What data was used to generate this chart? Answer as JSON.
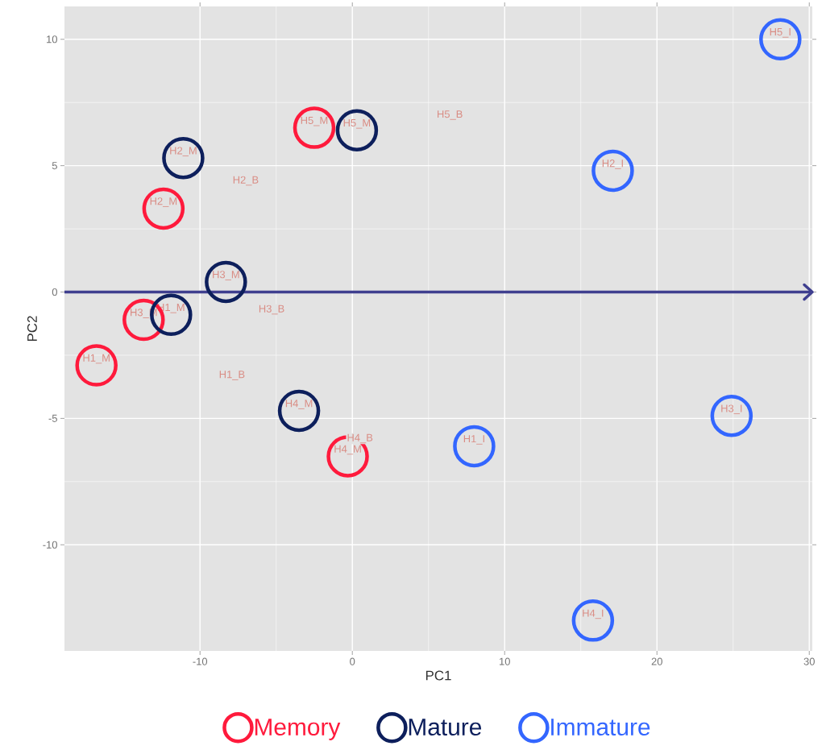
{
  "chart_data": {
    "type": "scatter",
    "xlabel": "PC1",
    "ylabel": "PC2",
    "xlim": [
      -18.9,
      30.2
    ],
    "ylim": [
      -14.2,
      11.3
    ],
    "xticks": [
      -10,
      0,
      10,
      20,
      30
    ],
    "yticks": [
      -10,
      -5,
      0,
      5,
      10
    ],
    "grid": true,
    "legend": "bottom",
    "ref_lines": [
      {
        "axis": "y",
        "value": 0,
        "color": "#3f3f8f"
      }
    ],
    "series": [
      {
        "color": "#d98c84",
        "marker": "none",
        "x": [
          6.4,
          -7.0,
          -5.3,
          -7.9,
          0.5
        ],
        "values": [
          7.0,
          4.4,
          -0.7,
          -3.3,
          -5.8
        ],
        "value_labels": [
          "H5_B",
          "H2_B",
          "H3_B",
          "H1_B",
          "H4_B"
        ]
      },
      {
        "name": "Memory",
        "color": "#ff1a3c",
        "marker": "circle",
        "x": [
          -2.5,
          -12.4,
          -13.7,
          -16.8,
          -0.3
        ],
        "values": [
          6.5,
          3.3,
          -1.1,
          -2.9,
          -6.5
        ],
        "value_labels": [
          "H5_M",
          "H2_M",
          "H3_M",
          "H1_M",
          "H4_M"
        ]
      },
      {
        "name": "Mature",
        "color": "#0d1f5c",
        "marker": "circle",
        "x": [
          0.3,
          -11.1,
          -8.3,
          -11.9,
          -3.5
        ],
        "values": [
          6.4,
          5.3,
          0.4,
          -0.9,
          -4.7
        ],
        "value_labels": [
          "H5_M",
          "H2_M",
          "H3_M",
          "H1_M",
          "H4_M"
        ]
      },
      {
        "name": "Immature",
        "color": "#3366ff",
        "marker": "circle",
        "x": [
          28.1,
          17.1,
          8.0,
          24.9,
          15.8
        ],
        "values": [
          10.0,
          4.8,
          -6.1,
          -4.9,
          -13.0
        ],
        "value_labels": [
          "H5_I",
          "H2_I",
          "H1_I",
          "H3_I",
          "H4_I"
        ]
      }
    ]
  }
}
